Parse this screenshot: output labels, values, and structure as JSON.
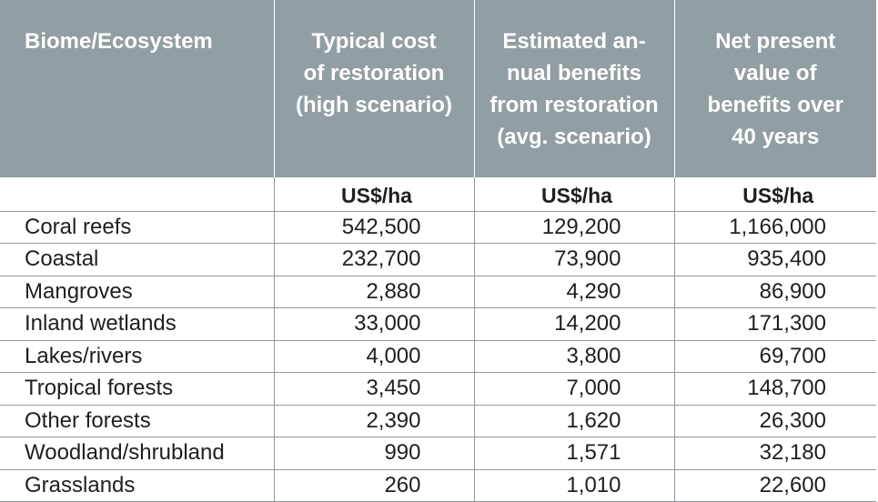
{
  "table": {
    "headers": [
      "Biome/Ecosystem",
      "Typical cost of restoration (high scenario)",
      "Estimated an-nual benefits from restoration (avg. scenario)",
      "Net present value of benefits over 40 years"
    ],
    "header_lines": [
      [
        "Biome/Ecosystem"
      ],
      [
        "Typical cost",
        "of restoration",
        "(high scenario)"
      ],
      [
        "Estimated an-",
        "nual benefits",
        "from restoration",
        "(avg. scenario)"
      ],
      [
        "Net present",
        "value of",
        "benefits over",
        "40 years"
      ]
    ],
    "units": [
      "",
      "US$/ha",
      "US$/ha",
      "US$/ha"
    ],
    "rows": [
      [
        "Coral reefs",
        "542,500",
        "129,200",
        "1,166,000"
      ],
      [
        "Coastal",
        "232,700",
        "73,900",
        "935,400"
      ],
      [
        "Mangroves",
        "2,880",
        "4,290",
        "86,900"
      ],
      [
        "Inland wetlands",
        "33,000",
        "14,200",
        "171,300"
      ],
      [
        "Lakes/rivers",
        "4,000",
        "3,800",
        "69,700"
      ],
      [
        "Tropical forests",
        "3,450",
        "7,000",
        "148,700"
      ],
      [
        "Other forests",
        "2,390",
        "1,620",
        "26,300"
      ],
      [
        "Woodland/shrubland",
        "990",
        "1,571",
        "32,180"
      ],
      [
        "Grasslands",
        "260",
        "1,010",
        "22,600"
      ]
    ]
  },
  "colors": {
    "header_bg": "#919ea4",
    "header_text": "#ffffff",
    "rule": "#8f9a9f",
    "body_text": "#1f1f1f"
  }
}
